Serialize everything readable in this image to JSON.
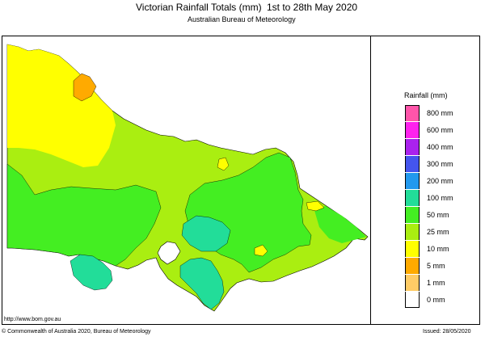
{
  "header": {
    "title": "Victorian Rainfall Totals (mm)",
    "dates": "1st to 28th May 2020",
    "subtitle": "Australian Bureau of Meteorology"
  },
  "legend": {
    "title": "Rainfall (mm)",
    "items": [
      {
        "label": "800 mm",
        "color": "#ff55aa"
      },
      {
        "label": "600 mm",
        "color": "#ff22ee"
      },
      {
        "label": "400 mm",
        "color": "#aa22ee"
      },
      {
        "label": "300 mm",
        "color": "#4455ee"
      },
      {
        "label": "200 mm",
        "color": "#2299ee"
      },
      {
        "label": "100 mm",
        "color": "#22dd99"
      },
      {
        "label": "50 mm",
        "color": "#44ee22"
      },
      {
        "label": "25 mm",
        "color": "#aaee11"
      },
      {
        "label": "10 mm",
        "color": "#ffff00"
      },
      {
        "label": "5 mm",
        "color": "#ffaa00"
      },
      {
        "label": "1 mm",
        "color": "#ffcc66"
      },
      {
        "label": "0 mm",
        "color": "#ffffff"
      }
    ]
  },
  "footer": {
    "url": "http://www.bom.gov.au",
    "copyright": "© Commonwealth of Australia 2020, Bureau of Meteorology",
    "issued": "Issued: 28/05/2020"
  },
  "map": {
    "colors": {
      "ocean": "#ffffff",
      "yellow": "#ffff00",
      "lime": "#aaee11",
      "green": "#44ee22",
      "teal": "#22dd99",
      "orange": "#ffaa00"
    }
  }
}
